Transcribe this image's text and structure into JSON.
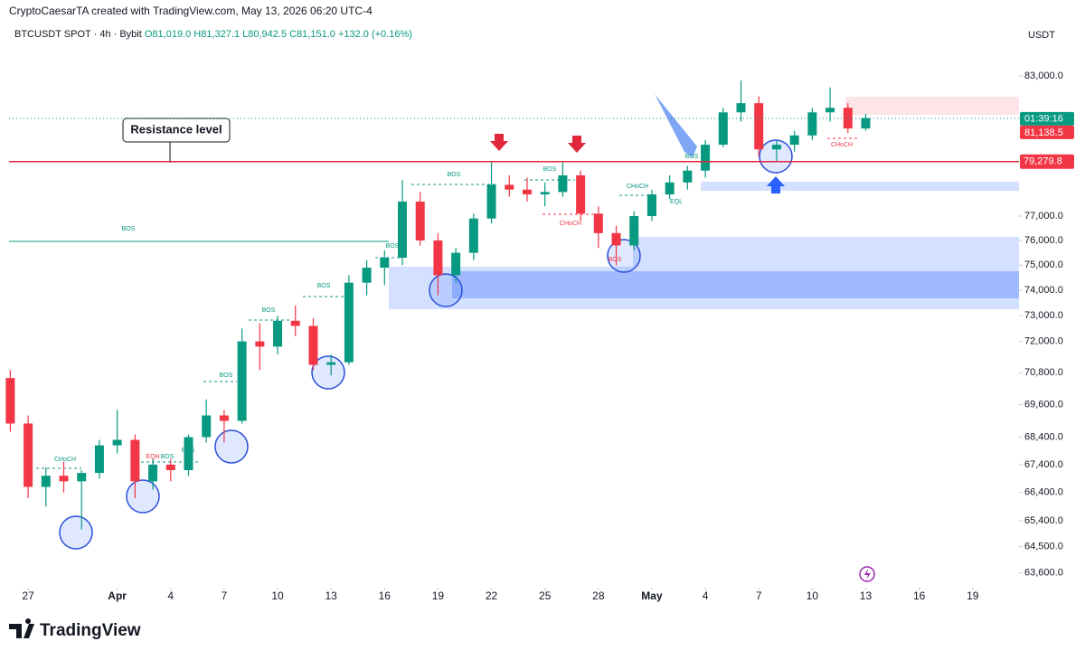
{
  "chart_data": {
    "type": "candlestick",
    "header": "CryptoCaesarTA created with TradingView.com, May 13, 2026 06:20 UTC-4",
    "symbol": "BTCUSDT SPOT · 4h · Bybit",
    "ohlc": [
      {
        "value": 81019.0,
        "label": "O81,019.0"
      },
      {
        "value": 81327.1,
        "label": "H81,327.1"
      },
      {
        "value": 80942.5,
        "label": "L80,942.5"
      },
      {
        "value": 81151.0,
        "label": "C81,151.0"
      }
    ],
    "change": {
      "value": 132.0,
      "label": "+132.0"
    },
    "change_pct": {
      "value": 0.16,
      "label": "(+0.16%)"
    },
    "currency": "USDT",
    "brand": "TradingView",
    "last_price": {
      "value": 81138.5,
      "label": "81,138.5"
    },
    "countdown": "01:39:16",
    "resistance": {
      "value": 79279.8,
      "label": "79,279.8"
    },
    "up_color": "#089981",
    "down_color": "#f23645",
    "log_scale": true,
    "ylim": [
      63100,
      84300
    ],
    "yticks": [
      {
        "value": 83000,
        "label": "83,000.0"
      },
      {
        "value": 77000,
        "label": "77,000.0"
      },
      {
        "value": 76000,
        "label": "76,000.0"
      },
      {
        "value": 75000,
        "label": "75,000.0"
      },
      {
        "value": 74000,
        "label": "74,000.0"
      },
      {
        "value": 73000,
        "label": "73,000.0"
      },
      {
        "value": 72000,
        "label": "72,000.0"
      },
      {
        "value": 70800,
        "label": "70,800.0"
      },
      {
        "value": 69600,
        "label": "69,600.0"
      },
      {
        "value": 68400,
        "label": "68,400.0"
      },
      {
        "value": 67400,
        "label": "67,400.0"
      },
      {
        "value": 66400,
        "label": "66,400.0"
      },
      {
        "value": 65400,
        "label": "65,400.0"
      },
      {
        "value": 64500,
        "label": "64,500.0"
      },
      {
        "value": 63600,
        "label": "63,600.0"
      }
    ],
    "xlim": [
      -1.07,
      55.6
    ],
    "xticks": [
      {
        "value": 0,
        "label": "27"
      },
      {
        "value": 5,
        "label": "Apr"
      },
      {
        "value": 8,
        "label": "4"
      },
      {
        "value": 11,
        "label": "7"
      },
      {
        "value": 14,
        "label": "10"
      },
      {
        "value": 17,
        "label": "13"
      },
      {
        "value": 20,
        "label": "16"
      },
      {
        "value": 23,
        "label": "19"
      },
      {
        "value": 26,
        "label": "22"
      },
      {
        "value": 29,
        "label": "25"
      },
      {
        "value": 32,
        "label": "28"
      },
      {
        "value": 35,
        "label": "May"
      },
      {
        "value": 38,
        "label": "4"
      },
      {
        "value": 41,
        "label": "7"
      },
      {
        "value": 44,
        "label": "10"
      },
      {
        "value": 47,
        "label": "13"
      },
      {
        "value": 50,
        "label": "16"
      },
      {
        "value": 53,
        "label": "19"
      }
    ],
    "x": [
      -1,
      0,
      1,
      2,
      3,
      4,
      5,
      6,
      7,
      8,
      9,
      10,
      11,
      12,
      13,
      14,
      15,
      16,
      17,
      18,
      19,
      20,
      21,
      22,
      23,
      24,
      25,
      26,
      27,
      28,
      29,
      30,
      31,
      32,
      33,
      34,
      35,
      36,
      37,
      38,
      39,
      40,
      41,
      42,
      43,
      44,
      45,
      46,
      47
    ],
    "open": [
      70600,
      68900,
      66600,
      67000,
      66800,
      67100,
      68100,
      68300,
      66800,
      67400,
      67200,
      68400,
      69200,
      69000,
      72000,
      71800,
      72800,
      72600,
      71100,
      71200,
      74300,
      74900,
      75300,
      77600,
      76000,
      74600,
      75500,
      76900,
      78300,
      78100,
      77900,
      78000,
      78700,
      77100,
      76300,
      75800,
      77000,
      77900,
      78400,
      78900,
      80000,
      81400,
      81800,
      79800,
      80000,
      80400,
      81400,
      81600,
      80700
    ],
    "high": [
      70900,
      69200,
      67300,
      67500,
      67200,
      68300,
      69400,
      68500,
      67600,
      67600,
      68500,
      69800,
      69400,
      72500,
      72700,
      73000,
      73400,
      72900,
      71500,
      74600,
      75200,
      75600,
      78500,
      78000,
      76300,
      75700,
      77100,
      79300,
      78700,
      78600,
      78400,
      79300,
      78900,
      77400,
      76600,
      77200,
      78100,
      78700,
      79100,
      80200,
      81600,
      82800,
      82100,
      80200,
      80600,
      81600,
      82500,
      81800,
      81327
    ],
    "low": [
      68600,
      66200,
      65900,
      66400,
      65100,
      66900,
      67800,
      66200,
      66500,
      66800,
      67000,
      68200,
      68200,
      68900,
      70900,
      71500,
      72200,
      70900,
      70700,
      71100,
      73800,
      74200,
      75000,
      75800,
      73800,
      74300,
      75200,
      76700,
      77800,
      77600,
      77400,
      77800,
      76800,
      75700,
      75000,
      75600,
      76800,
      77700,
      78100,
      78600,
      79900,
      81000,
      79500,
      79300,
      79700,
      80200,
      81000,
      80500,
      80600
    ],
    "close": [
      68900,
      66600,
      67000,
      66800,
      67100,
      68100,
      68300,
      66800,
      67400,
      67200,
      68400,
      69200,
      69000,
      72000,
      71800,
      72800,
      72600,
      71100,
      71200,
      74300,
      74900,
      75300,
      77600,
      76000,
      74600,
      75500,
      76900,
      78300,
      78100,
      77900,
      78000,
      78700,
      77100,
      76300,
      75800,
      77000,
      77900,
      78400,
      78900,
      80000,
      81400,
      81800,
      79800,
      80000,
      80400,
      81400,
      81600,
      80700,
      81151
    ],
    "annotations": [
      {
        "text": "Resistance level",
        "color": "#131722"
      },
      {
        "text": "BOS",
        "color": "#089981"
      },
      {
        "text": "BOS",
        "color": "#089981"
      },
      {
        "text": "BOS",
        "color": "#089981"
      },
      {
        "text": "CHoCH",
        "color": "#f23645"
      },
      {
        "text": "EQH",
        "color": "#f23645"
      },
      {
        "text": "BOS",
        "color": "#089981"
      },
      {
        "text": "BOS",
        "color": "#089981"
      },
      {
        "text": "BOS",
        "color": "#089981"
      },
      {
        "text": "BOS",
        "color": "#089981"
      },
      {
        "text": "BOS",
        "color": "#089981"
      },
      {
        "text": "BOS",
        "color": "#089981"
      },
      {
        "text": "CHoCH",
        "color": "#089981"
      },
      {
        "text": "CHoCH",
        "color": "#089981"
      },
      {
        "text": "EQL",
        "color": "#089981"
      },
      {
        "text": "CHoCH",
        "color": "#f23645"
      },
      {
        "text": "BOS",
        "color": "#f23645"
      },
      {
        "text": "BOS",
        "color": "#089981"
      }
    ]
  }
}
